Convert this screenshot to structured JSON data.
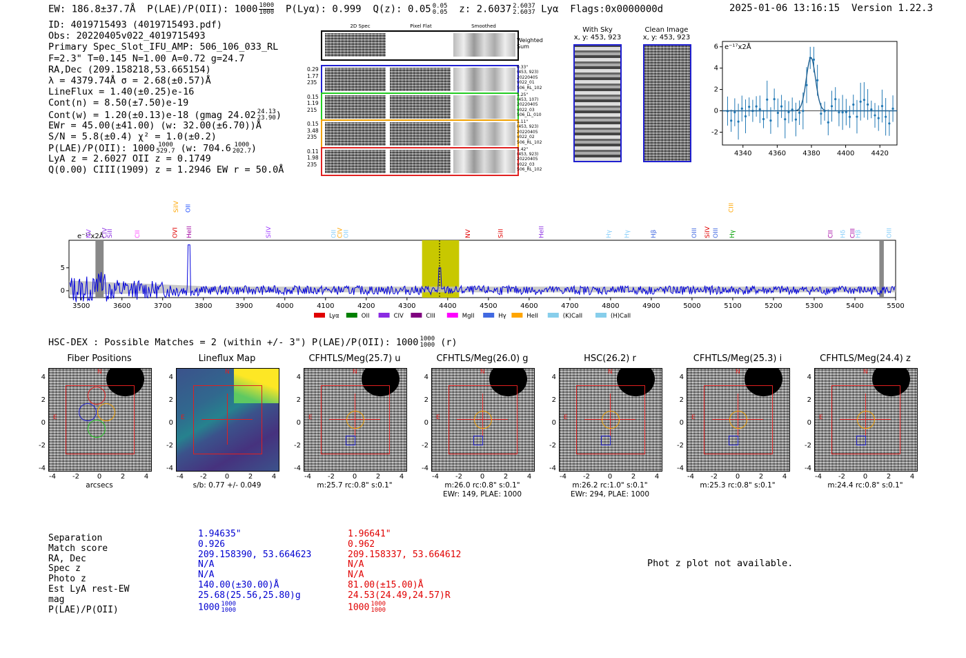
{
  "header": {
    "ew": "EW: 186.8±37.7Å",
    "plae_label": "P(LAE)/P(OII): 1000",
    "plae_hi": "1000",
    "plae_lo": "1000",
    "plya": "P(Lyα): 0.999",
    "qz_label": "Q(z): 0.05",
    "qz_hi": "0.05",
    "qz_lo": "0.05",
    "z_label": "z: 2.6037",
    "z_hi": "2.6037",
    "z_lo": "2.6037",
    "z_line": "Lyα",
    "flags": "Flags:0x0000000d",
    "datetime": "2025-01-06 13:16:15",
    "version": "Version 1.22.3"
  },
  "info": {
    "id": "ID: 4019715493 (4019715493.pdf)",
    "obs": "Obs: 20220405v022_4019715493",
    "primary": "Primary Spec_Slot_IFU_AMP: 506_106_033_RL",
    "fparams": "F=2.3\"  T=0.145  N=1.00  A=0.72  g=24.7",
    "radec": "RA,Dec (209.158218,53.665154)",
    "lambda": "λ = 4379.74Å  σ = 2.68(±0.57)Å",
    "lineflux": "LineFlux = 1.40(±0.25)e-16",
    "contn": "Cont(n) = 8.50(±7.50)e-19",
    "contw": "Cont(w) = 1.20(±0.13)e-18 (gmag 24.02",
    "contw_hi": "24.13",
    "contw_lo": "23.90",
    "contw_end": ")",
    "ewr": "EWr = 45.00(±41.00) (w: 32.00(±6.70))Å",
    "sn": "S/N = 5.8(±0.4)  χ² = 1.0(±0.2)",
    "plae": "P(LAE)/P(OII): 1000",
    "plae_hi": "1000",
    "plae_lo": "529.7",
    "plae_w": "(w: 704.6",
    "plae_w_hi": "1000",
    "plae_w_lo": "202.7",
    "plae_end": ")",
    "lya_z": "LyA z = 2.6027  OII z = 0.1749",
    "q_ciii": "Q(0.00) CIII(1909) z = 1.2946  EW r = 50.0Å"
  },
  "cutouts": {
    "col_2d": "2D Spec",
    "col_flat": "Pixel Flat",
    "col_smooth": "Smoothed",
    "weighted1": "Weighted",
    "weighted2": "Sum",
    "rows": [
      {
        "l1": "0.29",
        "l2": "1.77",
        "l3": "235",
        "r1": "0.33\"",
        "r2": "(453, 923)",
        "r3": "20220405",
        "r4": "v022_01",
        "r5": "506_RL_102",
        "color": "#1f1fd0"
      },
      {
        "l1": "0.15",
        "l2": "1.19",
        "l3": "215",
        "r1": "1.25\"",
        "r2": "(453, 107)",
        "r3": "20220405",
        "r4": "v022_03",
        "r5": "506_LL_010",
        "color": "#22cc22"
      },
      {
        "l1": "0.15",
        "l2": "3.48",
        "l3": "235",
        "r1": "1.11\"",
        "r2": "(453, 923)",
        "r3": "20220405",
        "r4": "v022_02",
        "r5": "506_RL_102",
        "color": "#f0a000"
      },
      {
        "l1": "0.11",
        "l2": "1.98",
        "l3": "235",
        "r1": "1.42\"",
        "r2": "(453, 923)",
        "r3": "20220405",
        "r4": "v022_03",
        "r5": "506_RL_102",
        "color": "#e02020"
      }
    ]
  },
  "sky": {
    "title": "With Sky",
    "coords": "x, y: 453, 923"
  },
  "clean": {
    "title": "Clean Image",
    "coords": "x, y: 453, 923"
  },
  "zoom_plot": {
    "unit": "e⁻¹⁷x2Å",
    "xticks": [
      "4340",
      "4360",
      "4380",
      "4400",
      "4420"
    ],
    "yticks": [
      "6",
      "4",
      "2",
      "0",
      "-2"
    ]
  },
  "spectrum": {
    "unit": "e⁻¹⁷x2Å",
    "xticks": [
      "3500",
      "3600",
      "3700",
      "3800",
      "3900",
      "4000",
      "4100",
      "4200",
      "4300",
      "4400",
      "4500",
      "4600",
      "4700",
      "4800",
      "4900",
      "5000",
      "5100",
      "5200",
      "5300",
      "5400",
      "5500"
    ],
    "yticks": [
      "5",
      "0"
    ],
    "lines": [
      {
        "label": "NV",
        "x": 3518,
        "color": "#a040ff",
        "row": 1
      },
      {
        "label": "CIV",
        "x": 3557,
        "color": "#8a2be2",
        "row": 1
      },
      {
        "label": "SiII",
        "x": 3570,
        "color": "#8a2be2",
        "row": 1
      },
      {
        "label": "CII",
        "x": 3638,
        "color": "#ff40ff",
        "row": 1
      },
      {
        "label": "SiIV",
        "x": 3733,
        "color": "#ffa500",
        "row": 0
      },
      {
        "label": "OVI",
        "x": 3730,
        "color": "#e00000",
        "row": 1
      },
      {
        "label": "OII",
        "x": 3762,
        "color": "#1f4fff",
        "row": 0
      },
      {
        "label": "HeII",
        "x": 3765,
        "color": "#a000a0",
        "row": 1
      },
      {
        "label": "SiIV",
        "x": 3960,
        "color": "#a040ff",
        "row": 1
      },
      {
        "label": "OII",
        "x": 4120,
        "color": "#87cefa",
        "row": 1
      },
      {
        "label": "CIV",
        "x": 4135,
        "color": "#ffa500",
        "row": 1
      },
      {
        "label": "OII",
        "x": 4150,
        "color": "#87cefa",
        "row": 1
      },
      {
        "label": "NV",
        "x": 4449,
        "color": "#e00000",
        "row": 1
      },
      {
        "label": "SiII",
        "x": 4530,
        "color": "#e00000",
        "row": 1
      },
      {
        "label": "HeII",
        "x": 4630,
        "color": "#8a2be2",
        "row": 1
      },
      {
        "label": "Hγ",
        "x": 4795,
        "color": "#87cefa",
        "row": 1
      },
      {
        "label": "Hγ",
        "x": 4840,
        "color": "#87cefa",
        "row": 1
      },
      {
        "label": "Hβ",
        "x": 4905,
        "color": "#4169e1",
        "row": 1
      },
      {
        "label": "OIII",
        "x": 5005,
        "color": "#4169e1",
        "row": 1
      },
      {
        "label": "SiIV",
        "x": 5037,
        "color": "#e00000",
        "row": 1
      },
      {
        "label": "OIII",
        "x": 5058,
        "color": "#4169e1",
        "row": 1
      },
      {
        "label": "CIII",
        "x": 5096,
        "color": "#ffa500",
        "row": 0
      },
      {
        "label": "Hγ",
        "x": 5098,
        "color": "#00a000",
        "row": 1
      },
      {
        "label": "CII",
        "x": 5340,
        "color": "#a000a0",
        "row": 1
      },
      {
        "label": "Hδ",
        "x": 5370,
        "color": "#87cefa",
        "row": 1
      },
      {
        "label": "CIII",
        "x": 5394,
        "color": "#a000a0",
        "row": 1
      },
      {
        "label": "Hβ",
        "x": 5408,
        "color": "#87cefa",
        "row": 1
      },
      {
        "label": "OIII",
        "x": 5484,
        "color": "#87cefa",
        "row": 1
      }
    ],
    "legend": [
      {
        "label": "Lyα",
        "color": "#e00000"
      },
      {
        "label": "OII",
        "color": "#008000"
      },
      {
        "label": "CIV",
        "color": "#8a2be2"
      },
      {
        "label": "CIII",
        "color": "#800080"
      },
      {
        "label": "MgII",
        "color": "#ff00ff"
      },
      {
        "label": "Hγ",
        "color": "#4169e1"
      },
      {
        "label": "HeII",
        "color": "#ffa500"
      },
      {
        "label": "(K)CaII",
        "color": "#87ceeb"
      },
      {
        "label": "(H)CaII",
        "color": "#87ceeb"
      }
    ]
  },
  "matches": {
    "text": "HSC-DEX : Possible Matches = 2 (within +/- 3\")  P(LAE)/P(OII): 1000",
    "hi": "1000",
    "lo": "1000",
    "end": "(r)"
  },
  "thumbs": [
    {
      "title": "Fiber Positions",
      "caption": "arcsecs",
      "caption2": ""
    },
    {
      "title": "Lineflux Map",
      "caption": "s/b: 0.77 +/- 0.049",
      "caption2": ""
    },
    {
      "title": "CFHTLS/Meg(25.7) u",
      "caption": "m:25.7 rc:0.8\"  s:0.1\"",
      "caption2": ""
    },
    {
      "title": "CFHTLS/Meg(26.0) g",
      "caption": "m:26.0 rc:0.8\"  s:0.1\"",
      "caption2": "EWr: 149, PLAE: 1000"
    },
    {
      "title": "HSC(26.2) r",
      "caption": "m:26.2 rc:1.0\"  s:0.1\"",
      "caption2": "EWr: 294, PLAE: 1000"
    },
    {
      "title": "CFHTLS/Meg(25.3) i",
      "caption": "m:25.3 rc:0.8\"  s:0.1\"",
      "caption2": ""
    },
    {
      "title": "CFHTLS/Meg(24.4) z",
      "caption": "m:24.4 rc:0.8\"  s:0.1\"",
      "caption2": ""
    }
  ],
  "thumb_ticks": [
    "-4",
    "-2",
    "0",
    "2",
    "4"
  ],
  "thumb_marks": {
    "n": "N",
    "e": "E"
  },
  "table": {
    "labels": [
      "Separation",
      "Match score",
      "RA, Dec",
      "Spec z",
      "Photo z",
      "Est LyA rest-EW",
      "mag",
      "P(LAE)/P(OII)"
    ],
    "col1": [
      "1.94635\"",
      "0.926",
      "209.158390, 53.664623",
      "N/A",
      "N/A",
      "140.00(±30.00)Å",
      "25.68(25.56,25.80)g",
      "1000"
    ],
    "col1_frac": {
      "hi": "1000",
      "lo": "1000"
    },
    "col2": [
      "1.96641\"",
      "0.962",
      "209.158337, 53.664612",
      "N/A",
      "N/A",
      "81.00(±15.00)Å",
      "24.53(24.49,24.57)R",
      "1000"
    ],
    "col2_frac": {
      "hi": "1000",
      "lo": "1000"
    }
  },
  "photz": "Phot z plot not available.",
  "colors": {
    "spec": "#0000dd",
    "highlight": "#c8c800",
    "zoomline": "#1f77b4",
    "box": "#e02020"
  }
}
